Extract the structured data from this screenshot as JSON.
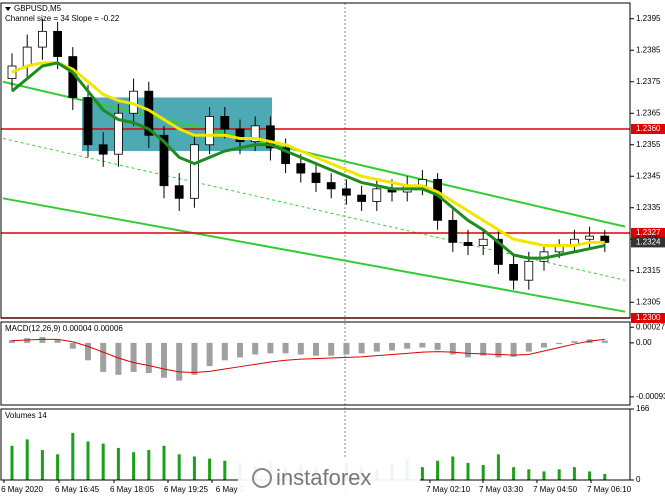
{
  "chart_data": [
    {
      "type": "candlestick",
      "title": "GBPUSD,M5",
      "subtitle": "Channel size = 34 Slope = -0.22",
      "open": [
        1.2376,
        1.238,
        1.2386,
        1.2391,
        1.2383,
        1.237,
        1.2355,
        1.2352,
        1.2365,
        1.2372,
        1.2358,
        1.2342,
        1.2338,
        1.2355,
        1.2364,
        1.236,
        1.2356,
        1.2361,
        1.2354,
        1.2349,
        1.2346,
        1.2343,
        1.2341,
        1.2339,
        1.2337,
        1.2341,
        1.234,
        1.2342,
        1.2344,
        1.2331,
        1.2324,
        1.2323,
        1.2325,
        1.2317,
        1.2312,
        1.2318,
        1.2321,
        1.2323,
        1.2325,
        1.2326
      ],
      "high": [
        1.2384,
        1.239,
        1.2395,
        1.2394,
        1.2386,
        1.2374,
        1.2359,
        1.2368,
        1.2376,
        1.2375,
        1.2361,
        1.2346,
        1.2358,
        1.2367,
        1.2367,
        1.2363,
        1.2364,
        1.2364,
        1.2357,
        1.2352,
        1.2349,
        1.2346,
        1.2344,
        1.2342,
        1.2344,
        1.2344,
        1.2345,
        1.2347,
        1.2346,
        1.2335,
        1.2328,
        1.2328,
        1.2328,
        1.232,
        1.2321,
        1.2323,
        1.2325,
        1.2328,
        1.2329,
        1.2328
      ],
      "low": [
        1.2372,
        1.2376,
        1.2382,
        1.2379,
        1.2366,
        1.2351,
        1.2348,
        1.2348,
        1.2361,
        1.2354,
        1.2338,
        1.2334,
        1.2335,
        1.2352,
        1.2357,
        1.2352,
        1.2353,
        1.235,
        1.2346,
        1.2343,
        1.234,
        1.2338,
        1.2336,
        1.2334,
        1.2334,
        1.2337,
        1.2337,
        1.2339,
        1.2328,
        1.2321,
        1.232,
        1.232,
        1.2314,
        1.2309,
        1.2309,
        1.2315,
        1.2319,
        1.2321,
        1.2322,
        1.2321
      ],
      "close": [
        1.238,
        1.2386,
        1.2391,
        1.2383,
        1.237,
        1.2355,
        1.2352,
        1.2365,
        1.2372,
        1.2358,
        1.2342,
        1.2338,
        1.2355,
        1.2364,
        1.236,
        1.2356,
        1.2361,
        1.2354,
        1.2349,
        1.2346,
        1.2343,
        1.2341,
        1.2339,
        1.2337,
        1.2341,
        1.234,
        1.2342,
        1.2344,
        1.2331,
        1.2324,
        1.2323,
        1.2325,
        1.2317,
        1.2312,
        1.2318,
        1.2321,
        1.2323,
        1.2325,
        1.2326,
        1.2324
      ],
      "series": [
        {
          "color": "#f2e600",
          "values": [
            1.2378,
            1.238,
            1.2381,
            1.2381,
            1.2379,
            1.2375,
            1.2371,
            1.2369,
            1.2368,
            1.2366,
            1.2363,
            1.236,
            1.2358,
            1.2358,
            1.2358,
            1.2357,
            1.2357,
            1.2356,
            1.2355,
            1.2353,
            1.2351,
            1.2349,
            1.2347,
            1.2345,
            1.2344,
            1.2343,
            1.2342,
            1.2342,
            1.234,
            1.2337,
            1.2334,
            1.2331,
            1.2328,
            1.2325,
            1.2324,
            1.2323,
            1.2323,
            1.2323,
            1.2324,
            1.2324
          ]
        },
        {
          "color": "#1e8c1e",
          "values": [
            1.2372,
            1.2376,
            1.238,
            1.2381,
            1.2378,
            1.2372,
            1.2366,
            1.2363,
            1.2362,
            1.236,
            1.2356,
            1.2351,
            1.2349,
            1.2351,
            1.2353,
            1.2354,
            1.2355,
            1.2355,
            1.2353,
            1.2351,
            1.2349,
            1.2347,
            1.2345,
            1.2343,
            1.2342,
            1.2341,
            1.2341,
            1.2341,
            1.2339,
            1.2335,
            1.2331,
            1.2328,
            1.2324,
            1.232,
            1.2319,
            1.2319,
            1.232,
            1.2321,
            1.2322,
            1.2323
          ]
        }
      ],
      "channel": {
        "upper": [
          1.2375,
          1.2329
        ],
        "middle": [
          1.2357,
          1.2312
        ],
        "lower": [
          1.2338,
          1.2302
        ],
        "color": "#33cc33"
      },
      "zone": {
        "low": 1.2353,
        "high": 1.237,
        "color": "#2e9aa6"
      },
      "levels": [
        {
          "value": 1.236,
          "label": "1.2360"
        },
        1.2327,
        {
          "value": 1.23,
          "label": "1.2300"
        }
      ],
      "level_color": "#e00000",
      "last_price": 1.2324,
      "ylim": [
        1.23,
        1.24
      ],
      "yticks": [
        1.2395,
        1.2385,
        1.2375,
        1.2365,
        1.2355,
        1.2345,
        1.2335,
        1.2325,
        1.2315,
        1.2305
      ]
    },
    {
      "type": "macd",
      "title": "MACD(12,26,9) 0.00004 0.00006",
      "values": [
        5e-05,
        8e-05,
        0.0001,
        6e-05,
        -0.0001,
        -0.0003,
        -0.0005,
        -0.00055,
        -0.0005,
        -0.00052,
        -0.0006,
        -0.00065,
        -0.00055,
        -0.0004,
        -0.0003,
        -0.00025,
        -0.0002,
        -0.00018,
        -0.00018,
        -0.0002,
        -0.00022,
        -0.00022,
        -0.0002,
        -0.00018,
        -0.00015,
        -0.00013,
        -0.0001,
        -8e-05,
        -0.00012,
        -0.0002,
        -0.00025,
        -0.00022,
        -0.00025,
        -0.00024,
        -0.00015,
        -8e-05,
        -2e-05,
        3e-05,
        6e-05,
        4e-05
      ],
      "signal": [
        4e-05,
        5e-05,
        6e-05,
        6e-05,
        2e-05,
        -6e-05,
        -0.00016,
        -0.00026,
        -0.00034,
        -0.00039,
        -0.00045,
        -0.0005,
        -0.00051,
        -0.00049,
        -0.00045,
        -0.00041,
        -0.00037,
        -0.00033,
        -0.0003,
        -0.00028,
        -0.00027,
        -0.00026,
        -0.00025,
        -0.00024,
        -0.00022,
        -0.0002,
        -0.00018,
        -0.00016,
        -0.00015,
        -0.00016,
        -0.00018,
        -0.00019,
        -0.0002,
        -0.00021,
        -0.0002,
        -0.00014,
        -8e-05,
        -2e-05,
        3e-05,
        6e-05
      ],
      "color": "#a0a0a0",
      "signal_color": "#e00000",
      "ylim": [
        -0.00107,
        0.00036
      ],
      "yticks": [
        0.00027,
        {
          "value": 0,
          "label": "0.00"
        },
        -0.00093
      ]
    },
    {
      "type": "bar",
      "title": "Volumes 14",
      "values": [
        80,
        95,
        70,
        60,
        110,
        90,
        85,
        75,
        65,
        70,
        80,
        60,
        55,
        50,
        45,
        40,
        35,
        45,
        30,
        35,
        30,
        25,
        40,
        30,
        25,
        35,
        50,
        30,
        45,
        55,
        40,
        35,
        60,
        30,
        25,
        20,
        25,
        30,
        20,
        14
      ],
      "color": "#1aa01a",
      "ylim": [
        0,
        166
      ],
      "yticks": [
        166,
        0
      ],
      "x_labels": [
        "6 May 2020",
        "6 May 16:45",
        "6 May 18:05",
        "6 May 19:25",
        "6 May 2",
        "7 May 02:10",
        "7 May 03:30",
        "7 May 04:50",
        "7 May 06:10"
      ],
      "annotation": "instaforex"
    }
  ]
}
